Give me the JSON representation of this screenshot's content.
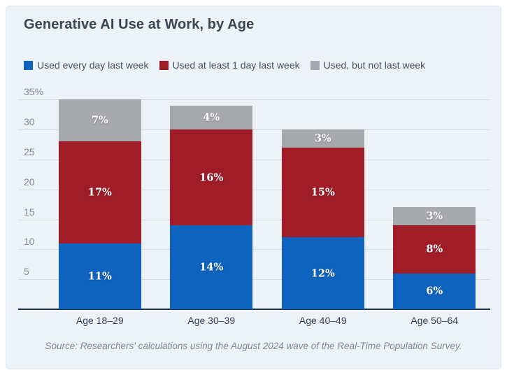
{
  "title": "Generative AI Use at Work, by Age",
  "legend": {
    "items": [
      {
        "label": "Used every day last week",
        "color": "#0e63be"
      },
      {
        "label": "Used at least 1 day last week",
        "color": "#a01d28"
      },
      {
        "label": "Used, but not last week",
        "color": "#a7a9ac"
      }
    ]
  },
  "source_note": "Source: Researchers' calculations using the August 2024 wave of the Real-Time Population Survey.",
  "colors": {
    "card_background": "#edf1f8",
    "title_text": "#3b4452",
    "gridline": "#d5dae4",
    "axis_baseline": "#1e3453",
    "y_tick_text": "#7f8b9b",
    "x_tick_text": "#2f3e57",
    "bar_blue": "#0e63be",
    "bar_red": "#a01d28",
    "bar_gray": "#a7a9ac",
    "segment_label_text": "#ffffff"
  },
  "chart_data": {
    "type": "bar",
    "stacked": true,
    "title": "Generative AI Use at Work, by Age",
    "categories": [
      "Age 18–29",
      "Age 30–39",
      "Age 40–49",
      "Age 50–64"
    ],
    "series": [
      {
        "name": "Used every day last week",
        "color": "#0e63be",
        "values": [
          11,
          14,
          12,
          6
        ]
      },
      {
        "name": "Used at least 1 day last week",
        "color": "#a01d28",
        "values": [
          17,
          16,
          15,
          8
        ]
      },
      {
        "name": "Used, but not last week",
        "color": "#a7a9ac",
        "values": [
          7,
          4,
          3,
          3
        ]
      }
    ],
    "totals": [
      35,
      34,
      30,
      17
    ],
    "value_suffix": "%",
    "xlabel": "",
    "ylabel": "",
    "ylim": [
      0,
      36.9
    ],
    "y_ticks": [
      5,
      10,
      15,
      20,
      25,
      30,
      35
    ],
    "y_tick_labels": [
      "5",
      "10",
      "15",
      "20",
      "25",
      "30",
      "35%"
    ],
    "grid": true,
    "legend_position": "top",
    "data_labels": "inside-white"
  }
}
